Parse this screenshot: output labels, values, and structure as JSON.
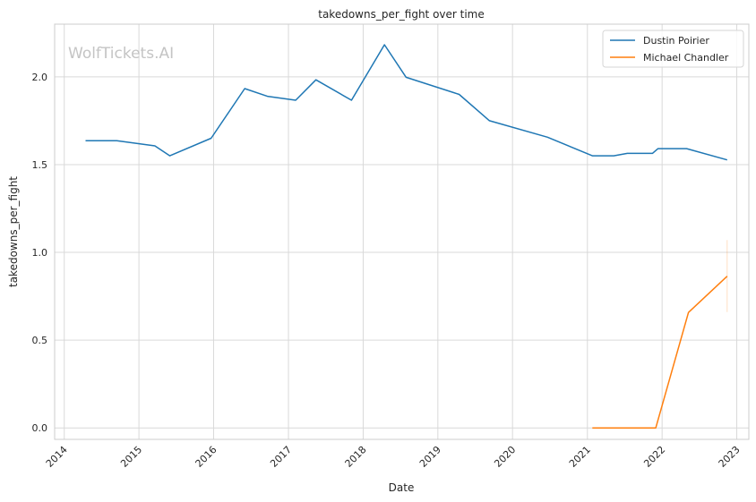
{
  "chart_data": {
    "type": "line",
    "title": "takedowns_per_fight over time",
    "xlabel": "Date",
    "ylabel": "takedowns_per_fight",
    "watermark": "WolfTickets.AI",
    "xlim": [
      "2013-11-15",
      "2023-03-01"
    ],
    "ylim": [
      -0.065,
      2.3
    ],
    "x_ticks": [
      "2014",
      "2015",
      "2016",
      "2017",
      "2018",
      "2019",
      "2020",
      "2021",
      "2022",
      "2023"
    ],
    "y_ticks": [
      "0.0",
      "0.5",
      "1.0",
      "1.5",
      "2.0"
    ],
    "grid": true,
    "legend_position": "top-right",
    "series": [
      {
        "name": "Dustin Poirier",
        "color": "#1f77b4",
        "points": [
          [
            "2014-04-15",
            1.636
          ],
          [
            "2014-09-15",
            1.636
          ],
          [
            "2015-03-20",
            1.607
          ],
          [
            "2015-06-01",
            1.55
          ],
          [
            "2015-12-20",
            1.65
          ],
          [
            "2016-06-01",
            1.933
          ],
          [
            "2016-09-20",
            1.889
          ],
          [
            "2017-02-05",
            1.867
          ],
          [
            "2017-05-15",
            1.983
          ],
          [
            "2017-11-05",
            1.867
          ],
          [
            "2018-04-15",
            2.183
          ],
          [
            "2018-07-30",
            1.997
          ],
          [
            "2019-04-15",
            1.9
          ],
          [
            "2019-09-10",
            1.75
          ],
          [
            "2020-06-20",
            1.656
          ],
          [
            "2021-01-25",
            1.55
          ],
          [
            "2021-05-10",
            1.55
          ],
          [
            "2021-07-15",
            1.564
          ],
          [
            "2021-11-15",
            1.564
          ],
          [
            "2021-12-12",
            1.591
          ],
          [
            "2022-05-01",
            1.591
          ],
          [
            "2022-11-15",
            1.527
          ]
        ]
      },
      {
        "name": "Michael Chandler",
        "color": "#ff7f0e",
        "points": [
          [
            "2021-01-25",
            0.0
          ],
          [
            "2021-12-01",
            0.0
          ],
          [
            "2022-05-10",
            0.658
          ],
          [
            "2022-11-15",
            0.864
          ]
        ],
        "error_band": {
          "date": "2022-11-15",
          "low": 0.66,
          "high": 1.07
        }
      }
    ]
  }
}
